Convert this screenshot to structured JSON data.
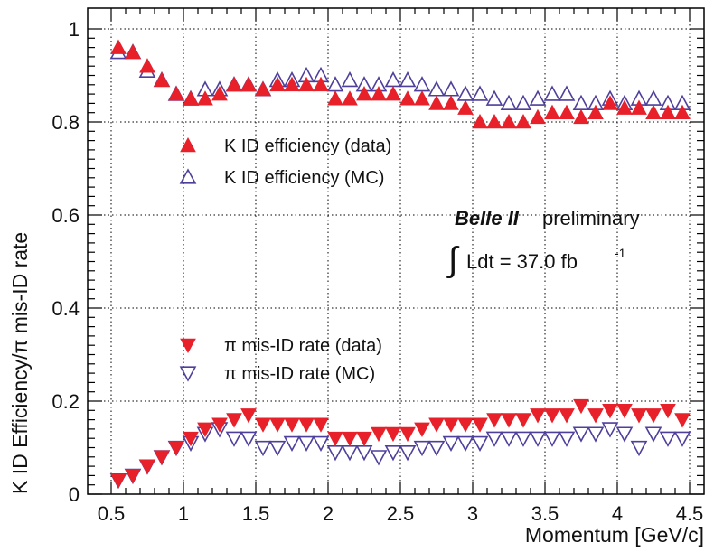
{
  "chart_data": {
    "type": "scatter",
    "xlabel": "Momentum [GeV/c]",
    "ylabel": "K ID Efficiency/π mis-ID rate",
    "xlim": [
      0.4,
      4.6
    ],
    "ylim": [
      0,
      1.05
    ],
    "x_ticks": [
      "0.5",
      "1",
      "1.5",
      "2",
      "2.5",
      "3",
      "3.5",
      "4",
      "4.5"
    ],
    "y_ticks": [
      "0",
      "0.2",
      "0.4",
      "0.6",
      "0.8",
      "1"
    ],
    "grid": "dotted",
    "annotation": {
      "brand": "Belle II",
      "status": "preliminary",
      "lumi_integral": "∫",
      "lumi_text": "Ldt = 37.0 fb",
      "lumi_exp": "-1"
    },
    "colors": {
      "data": "#e8202a",
      "mc": "#4e3f9b"
    },
    "legend_upper": [
      "K ID efficiency (data)",
      "K ID efficiency (MC)"
    ],
    "legend_lower": [
      "π mis-ID rate (data)",
      "π mis-ID rate (MC)"
    ],
    "x": [
      0.55,
      0.65,
      0.75,
      0.85,
      0.95,
      1.05,
      1.15,
      1.25,
      1.35,
      1.45,
      1.55,
      1.65,
      1.75,
      1.85,
      1.95,
      2.05,
      2.15,
      2.25,
      2.35,
      2.45,
      2.55,
      2.65,
      2.75,
      2.85,
      2.95,
      3.05,
      3.15,
      3.25,
      3.35,
      3.45,
      3.55,
      3.65,
      3.75,
      3.85,
      3.95,
      4.05,
      4.15,
      4.25,
      4.35,
      4.45
    ],
    "series": [
      {
        "name": "K ID efficiency (data)",
        "marker": "triangle-up-filled",
        "values": [
          0.96,
          0.95,
          0.92,
          0.89,
          0.86,
          0.85,
          0.85,
          0.86,
          0.88,
          0.88,
          0.87,
          0.88,
          0.88,
          0.88,
          0.88,
          0.85,
          0.85,
          0.86,
          0.86,
          0.86,
          0.85,
          0.85,
          0.84,
          0.84,
          0.83,
          0.8,
          0.8,
          0.8,
          0.8,
          0.81,
          0.82,
          0.82,
          0.81,
          0.82,
          0.84,
          0.83,
          0.83,
          0.82,
          0.82,
          0.82
        ]
      },
      {
        "name": "K ID efficiency (MC)",
        "marker": "triangle-up-open",
        "values": [
          0.95,
          0.95,
          0.91,
          0.89,
          0.86,
          0.85,
          0.87,
          0.87,
          0.88,
          0.88,
          0.87,
          0.89,
          0.89,
          0.9,
          0.9,
          0.88,
          0.89,
          0.88,
          0.88,
          0.89,
          0.89,
          0.88,
          0.87,
          0.87,
          0.86,
          0.86,
          0.85,
          0.84,
          0.84,
          0.85,
          0.86,
          0.86,
          0.84,
          0.84,
          0.85,
          0.84,
          0.85,
          0.85,
          0.84,
          0.84
        ]
      },
      {
        "name": "π mis-ID rate (data)",
        "marker": "triangle-down-filled",
        "values": [
          0.03,
          0.04,
          0.06,
          0.08,
          0.1,
          0.12,
          0.14,
          0.15,
          0.16,
          0.17,
          0.15,
          0.15,
          0.15,
          0.15,
          0.15,
          0.12,
          0.12,
          0.12,
          0.13,
          0.13,
          0.13,
          0.14,
          0.15,
          0.15,
          0.15,
          0.15,
          0.16,
          0.16,
          0.16,
          0.17,
          0.17,
          0.17,
          0.19,
          0.17,
          0.18,
          0.18,
          0.17,
          0.17,
          0.18,
          0.16
        ]
      },
      {
        "name": "π mis-ID rate (MC)",
        "marker": "triangle-down-open",
        "values": [
          0.03,
          0.04,
          0.06,
          0.08,
          0.1,
          0.11,
          0.13,
          0.14,
          0.12,
          0.12,
          0.1,
          0.1,
          0.11,
          0.11,
          0.11,
          0.09,
          0.09,
          0.09,
          0.08,
          0.09,
          0.09,
          0.1,
          0.1,
          0.11,
          0.11,
          0.11,
          0.12,
          0.12,
          0.12,
          0.12,
          0.12,
          0.12,
          0.13,
          0.13,
          0.14,
          0.13,
          0.1,
          0.13,
          0.12,
          0.12
        ]
      }
    ]
  }
}
